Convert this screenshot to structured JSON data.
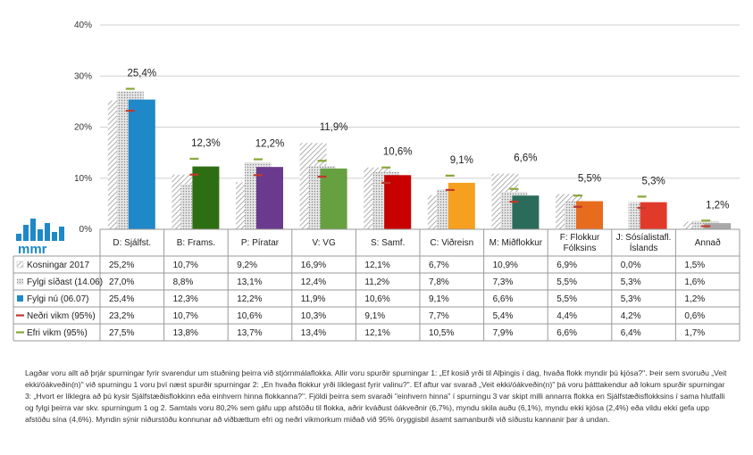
{
  "chart_data": {
    "type": "bar",
    "ylim": [
      0,
      40
    ],
    "yticks": [
      "0%",
      "10%",
      "20%",
      "30%",
      "40%"
    ],
    "yticks_values": [
      0,
      10,
      20,
      30,
      40
    ],
    "categories": [
      "D: Sjálfst.",
      "B: Frams.",
      "P: Píratar",
      "V: VG",
      "S: Samf.",
      "C: Viðreisn",
      "M: Miðflokkur",
      "F: Flokkur Fólksins",
      "J: Sósíalistafl. Íslands",
      "Annað"
    ],
    "series": [
      {
        "name": "Kosningar 2017",
        "values": [
          25.2,
          10.7,
          9.2,
          16.9,
          12.1,
          6.7,
          10.9,
          6.9,
          0.0,
          1.5
        ],
        "labels": [
          "25,2%",
          "10,7%",
          "9,2%",
          "16,9%",
          "12,1%",
          "6,7%",
          "10,9%",
          "6,9%",
          "0,0%",
          "1,5%"
        ]
      },
      {
        "name": "Fylgi síðast (14.06)",
        "values": [
          27.0,
          8.8,
          13.1,
          12.4,
          11.2,
          7.8,
          7.3,
          5.5,
          5.3,
          1.6
        ],
        "labels": [
          "27,0%",
          "8,8%",
          "13,1%",
          "12,4%",
          "11,2%",
          "7,8%",
          "7,3%",
          "5,5%",
          "5,3%",
          "1,6%"
        ]
      },
      {
        "name": "Fylgi nú (06.07)",
        "values": [
          25.4,
          12.3,
          12.2,
          11.9,
          10.6,
          9.1,
          6.6,
          5.5,
          5.3,
          1.2
        ],
        "labels": [
          "25,4%",
          "12,3%",
          "12,2%",
          "11,9%",
          "10,6%",
          "9,1%",
          "6,6%",
          "5,5%",
          "5,3%",
          "1,2%"
        ]
      },
      {
        "name": "Neðri vikm (95%)",
        "values": [
          23.2,
          10.7,
          10.6,
          10.3,
          9.1,
          7.7,
          5.4,
          4.4,
          4.2,
          0.6
        ],
        "labels": [
          "23,2%",
          "10,7%",
          "10,6%",
          "10,3%",
          "9,1%",
          "7,7%",
          "5,4%",
          "4,4%",
          "4,2%",
          "0,6%"
        ]
      },
      {
        "name": "Efri vikm (95%)",
        "values": [
          27.5,
          13.8,
          13.7,
          13.4,
          12.1,
          10.5,
          7.9,
          6.6,
          6.4,
          1.7
        ],
        "labels": [
          "27,5%",
          "13,8%",
          "13,7%",
          "13,4%",
          "12,1%",
          "10,5%",
          "7,9%",
          "6,6%",
          "6,4%",
          "1,7%"
        ]
      }
    ],
    "current_labels": [
      "25,4%",
      "12,3%",
      "12,2%",
      "11,9%",
      "10,6%",
      "9,1%",
      "6,6%",
      "5,5%",
      "5,3%",
      "1,2%"
    ],
    "colors": {
      "bars_now": [
        "#1e88c8",
        "#2e6e12",
        "#6a3a8e",
        "#66a040",
        "#c80000",
        "#f5a01e",
        "#2a6b5a",
        "#e86c1e",
        "#e23a2a",
        "#a8a8a8"
      ],
      "lower_ci": "#c0392b",
      "upper_ci": "#8aa63a",
      "hatched": "#9a9a9a",
      "grid": "#d0d0d0",
      "logo": "#1e88c8"
    },
    "legend_placement": "table-left",
    "grid": true
  },
  "logo": {
    "text": "mmr",
    "icon": "bar-chart-logo-icon"
  },
  "footnote": "Lagðar voru allt að þrjár spurningar fyrir svarendur um stuðning þeirra við stjórnmálaflokka. Allir voru spurðir spurningar 1: „Ef kosið yrði til Alþingis í dag, hvaða flokk myndir þú kjósa?\". Þeir sem svoruðu „Veit ekki/óákveðin(n)\" við spurningu 1 voru því næst spurðir spurningar 2: „En hvaða flokkur yrði líklegast fyrir valinu?\". Ef aftur var svarað „Veit ekki/óákveðin(n)\" þá voru þátttakendur að lokum spurðir spurningar 3: „Hvort er líklegra að þú kysir Sjálfstæðisflokkinn eða einhvern hinna flokkanna?\". Fjöldi þeirra sem svaraði \"einhvern hinna\" í spurningu 3 var skipt milli annarra flokka en Sjálfstæðisflokksins í sama hlutfalli og fylgi þeirra var skv. spurningum 1 og 2. Samtals voru 80,2% sem gáfu upp afstöðu til flokka, aðrir kváðust óákveðnir (6,7%), myndu skila auðu (6,1%), myndu ekki kjósa (2,4%) eða vildu ekki gefa upp afstöðu sína (4,6%). Myndin sýnir niðurstöðu konnunar að viðbættum efri og neðri vikmorkum miðað við 95% öryggisbil ásamt samanburði við síðustu kannanir þar á undan."
}
